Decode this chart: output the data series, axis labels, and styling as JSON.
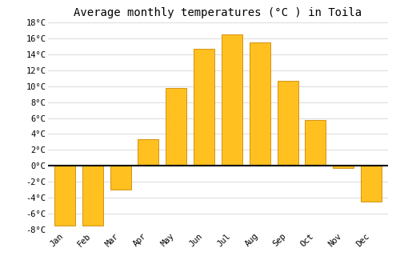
{
  "title": "Average monthly temperatures (°C ) in Toila",
  "months": [
    "Jan",
    "Feb",
    "Mar",
    "Apr",
    "May",
    "Jun",
    "Jul",
    "Aug",
    "Sep",
    "Oct",
    "Nov",
    "Dec"
  ],
  "values": [
    -7.5,
    -7.5,
    -3.0,
    3.3,
    9.8,
    14.7,
    16.5,
    15.5,
    10.7,
    5.8,
    -0.3,
    -4.5
  ],
  "bar_color": "#FFC020",
  "bar_edge_color": "#CC8800",
  "background_color": "#FFFFFF",
  "grid_color": "#DDDDDD",
  "ylim": [
    -8,
    18
  ],
  "yticks": [
    -8,
    -6,
    -4,
    -2,
    0,
    2,
    4,
    6,
    8,
    10,
    12,
    14,
    16,
    18
  ],
  "ytick_labels": [
    "-8°C",
    "-6°C",
    "-4°C",
    "-2°C",
    "0°C",
    "2°C",
    "4°C",
    "6°C",
    "8°C",
    "10°C",
    "12°C",
    "14°C",
    "16°C",
    "18°C"
  ],
  "title_fontsize": 10,
  "tick_fontsize": 7.5,
  "font_family": "monospace",
  "bar_width": 0.75
}
